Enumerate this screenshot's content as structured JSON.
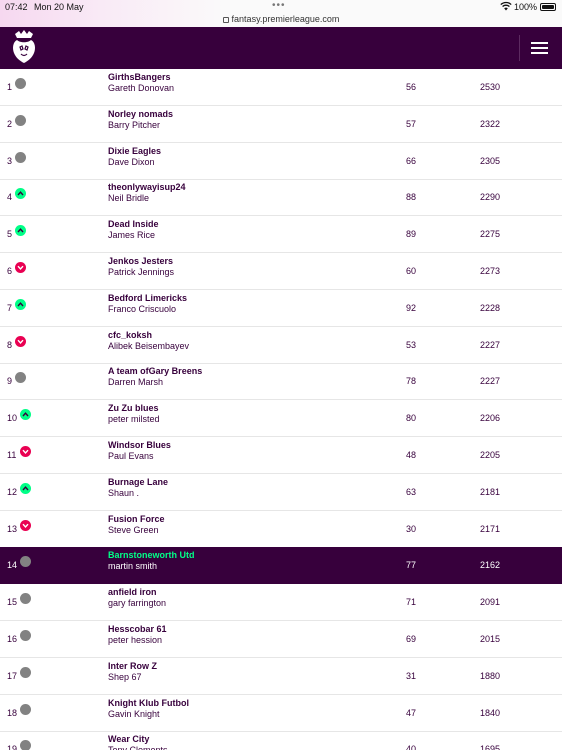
{
  "status_bar": {
    "time": "07:42",
    "date": "Mon 20 May",
    "url": "fantasy.premierleague.com",
    "battery": "100%"
  },
  "header": {
    "logo_icon": "premier-league-lion-icon",
    "menu_icon": "hamburger-menu-icon",
    "background": "#37003c"
  },
  "colors": {
    "brand_purple": "#37003c",
    "up_green": "#00ff87",
    "down_pink": "#e90052",
    "same_grey": "#828282"
  },
  "standings": [
    {
      "rank": "1",
      "movement": "same",
      "team": "GirthsBangers",
      "manager": "Gareth Donovan",
      "gw": "56",
      "total": "2530"
    },
    {
      "rank": "2",
      "movement": "same",
      "team": "Norley nomads",
      "manager": "Barry Pitcher",
      "gw": "57",
      "total": "2322"
    },
    {
      "rank": "3",
      "movement": "same",
      "team": "Dixie Eagles",
      "manager": "Dave Dixon",
      "gw": "66",
      "total": "2305"
    },
    {
      "rank": "4",
      "movement": "up",
      "team": "theonlywayisup24",
      "manager": "Neil Bridle",
      "gw": "88",
      "total": "2290"
    },
    {
      "rank": "5",
      "movement": "up",
      "team": "Dead Inside",
      "manager": "James Rice",
      "gw": "89",
      "total": "2275"
    },
    {
      "rank": "6",
      "movement": "down",
      "team": "Jenkos Jesters",
      "manager": "Patrick Jennings",
      "gw": "60",
      "total": "2273"
    },
    {
      "rank": "7",
      "movement": "up",
      "team": "Bedford Limericks",
      "manager": "Franco Criscuolo",
      "gw": "92",
      "total": "2228"
    },
    {
      "rank": "8",
      "movement": "down",
      "team": "cfc_koksh",
      "manager": "Alibek Beisembayev",
      "gw": "53",
      "total": "2227"
    },
    {
      "rank": "9",
      "movement": "same",
      "team": "A team ofGary Breens",
      "manager": "Darren Marsh",
      "gw": "78",
      "total": "2227"
    },
    {
      "rank": "10",
      "movement": "up",
      "team": "Zu Zu blues",
      "manager": "peter milsted",
      "gw": "80",
      "total": "2206"
    },
    {
      "rank": "11",
      "movement": "down",
      "team": "Windsor Blues",
      "manager": "Paul Evans",
      "gw": "48",
      "total": "2205"
    },
    {
      "rank": "12",
      "movement": "up",
      "team": "Burnage Lane",
      "manager": "Shaun .",
      "gw": "63",
      "total": "2181"
    },
    {
      "rank": "13",
      "movement": "down",
      "team": "Fusion Force",
      "manager": "Steve Green",
      "gw": "30",
      "total": "2171"
    },
    {
      "rank": "14",
      "movement": "same",
      "team": "Barnstoneworth Utd",
      "manager": "martin smith",
      "gw": "77",
      "total": "2162",
      "current": true
    },
    {
      "rank": "15",
      "movement": "same",
      "team": "anfield iron",
      "manager": "gary farrington",
      "gw": "71",
      "total": "2091"
    },
    {
      "rank": "16",
      "movement": "same",
      "team": "Hesscobar 61",
      "manager": "peter hession",
      "gw": "69",
      "total": "2015"
    },
    {
      "rank": "17",
      "movement": "same",
      "team": "Inter Row Z",
      "manager": "Shep 67",
      "gw": "31",
      "total": "1880"
    },
    {
      "rank": "18",
      "movement": "same",
      "team": "Knight Klub Futbol",
      "manager": "Gavin Knight",
      "gw": "47",
      "total": "1840"
    },
    {
      "rank": "19",
      "movement": "same",
      "team": "Wear City",
      "manager": "Tony Clements",
      "gw": "40",
      "total": "1695"
    }
  ]
}
